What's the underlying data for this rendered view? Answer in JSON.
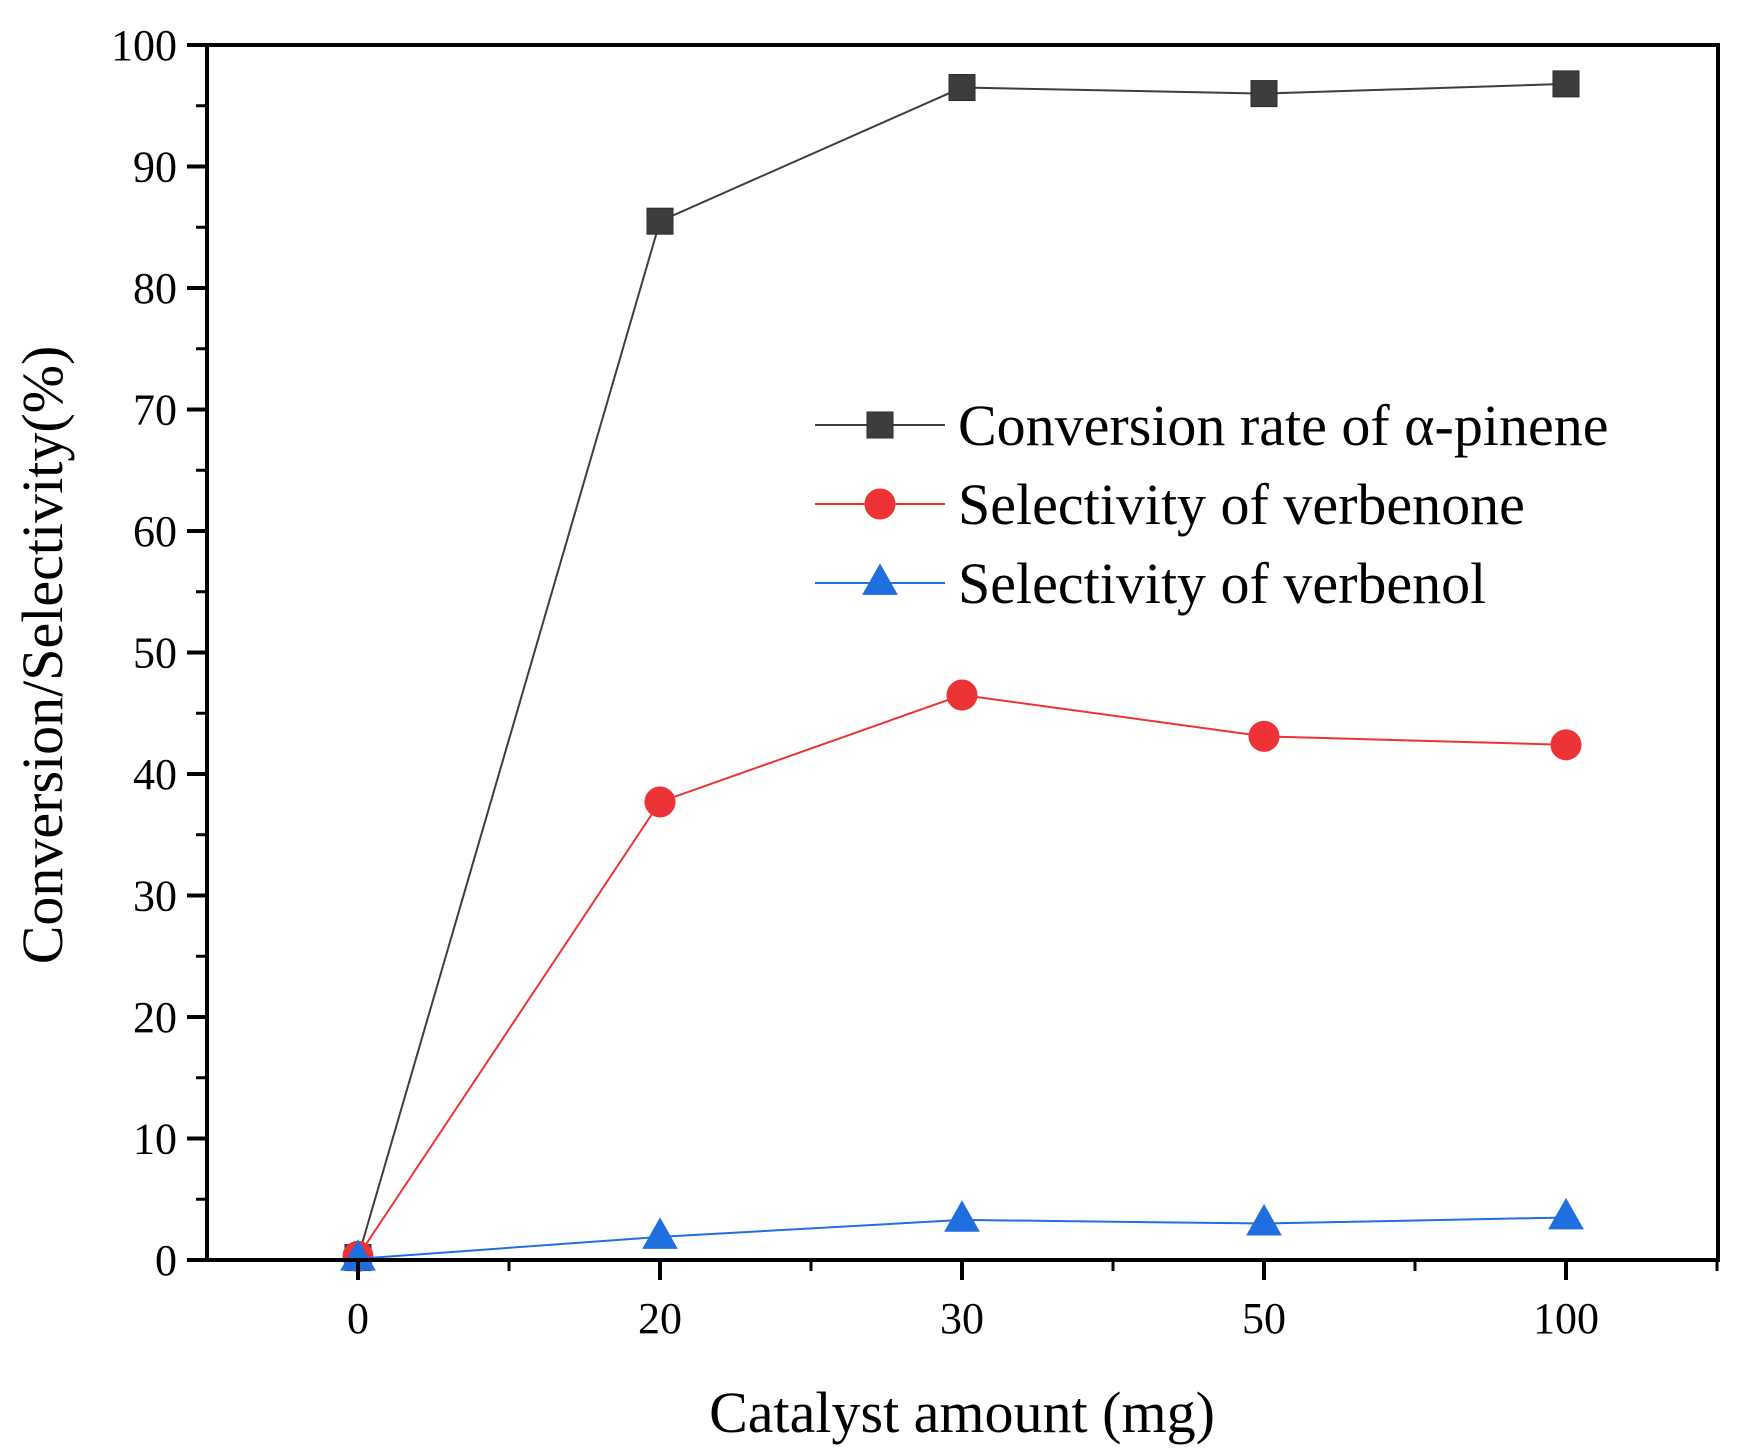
{
  "chart_data": {
    "type": "line",
    "xlabel": "Catalyst amount (mg)",
    "ylabel": "Conversion/Selectivity(%)",
    "categories": [
      "0",
      "20",
      "30",
      "50",
      "100"
    ],
    "ylim": [
      0,
      100
    ],
    "yticks": [
      0,
      10,
      20,
      30,
      40,
      50,
      60,
      70,
      80,
      90,
      100
    ],
    "legend_position": "center-right",
    "series": [
      {
        "name": "Conversion rate of α-pinene",
        "marker": "square",
        "color": "#3d3d3d",
        "values": [
          0.2,
          85.5,
          96.5,
          96.0,
          96.8
        ]
      },
      {
        "name": "Selectivity of verbenone",
        "marker": "circle",
        "color": "#ee3338",
        "values": [
          0.3,
          37.7,
          46.5,
          43.1,
          42.4
        ]
      },
      {
        "name": "Selectivity of verbenol",
        "marker": "triangle",
        "color": "#1f6fe0",
        "values": [
          0.1,
          1.9,
          3.3,
          3.0,
          3.5
        ]
      }
    ]
  }
}
